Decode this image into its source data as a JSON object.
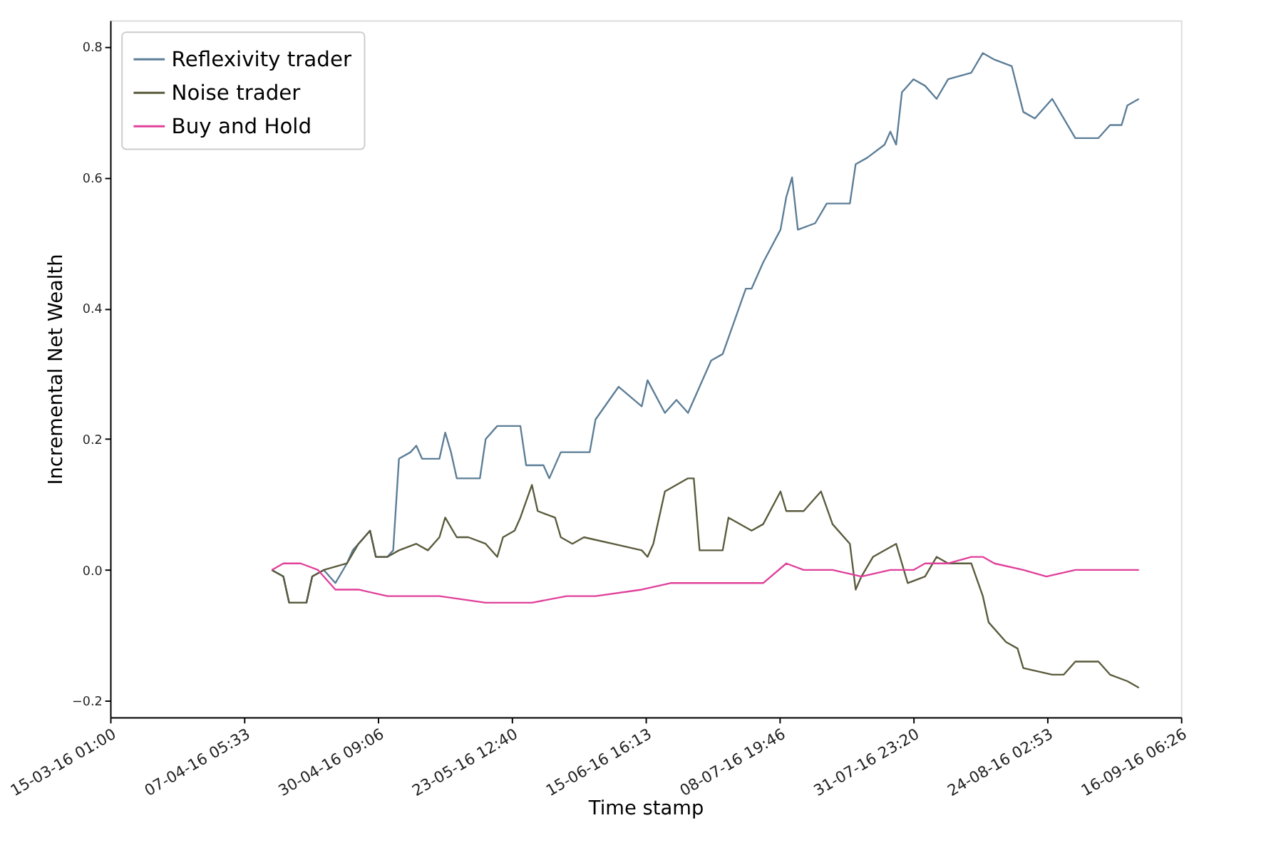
{
  "chart_data": {
    "type": "line",
    "xlabel": "Time stamp",
    "ylabel": "Incremental Net Wealth",
    "xlim": [
      "2016-03-15T01:00",
      "2016-09-16T06:26"
    ],
    "xticks": [
      {
        "value": "2016-03-15T01:00",
        "label": "15-03-16 01:00"
      },
      {
        "value": "2016-04-07T05:33",
        "label": "07-04-16 05:33"
      },
      {
        "value": "2016-04-30T09:06",
        "label": "30-04-16 09:06"
      },
      {
        "value": "2016-05-23T12:40",
        "label": "23-05-16 12:40"
      },
      {
        "value": "2016-06-15T16:13",
        "label": "15-06-16 16:13"
      },
      {
        "value": "2016-07-08T19:46",
        "label": "08-07-16 19:46"
      },
      {
        "value": "2016-07-31T23:20",
        "label": "31-07-16 23:20"
      },
      {
        "value": "2016-08-24T02:53",
        "label": "24-08-16 02:53"
      },
      {
        "value": "2016-09-16T06:26",
        "label": "16-09-16 06:26"
      }
    ],
    "ylim": [
      -0.225,
      0.84
    ],
    "yticks": [
      {
        "value": -0.2,
        "label": "−0.2"
      },
      {
        "value": 0,
        "label": "0.0"
      },
      {
        "value": 0.2,
        "label": "0.2"
      },
      {
        "value": 0.4,
        "label": "0.4"
      },
      {
        "value": 0.6,
        "label": "0.6"
      },
      {
        "value": 0.8,
        "label": "0.8"
      }
    ],
    "grid": false,
    "legend": "top left",
    "line_style": "solid",
    "marker": "none",
    "series": [
      {
        "name": "Reflexivity trader",
        "color": "#5b7d96",
        "x": [
          "2016-04-12",
          "2016-04-14",
          "2016-04-15",
          "2016-04-18",
          "2016-04-19",
          "2016-04-21",
          "2016-04-23",
          "2016-04-25",
          "2016-04-26",
          "2016-04-27",
          "2016-04-29",
          "2016-04-30",
          "2016-05-02",
          "2016-05-03",
          "2016-05-04",
          "2016-05-06",
          "2016-05-07",
          "2016-05-08",
          "2016-05-11",
          "2016-05-12",
          "2016-05-13",
          "2016-05-14",
          "2016-05-18",
          "2016-05-19",
          "2016-05-21",
          "2016-05-25",
          "2016-05-26",
          "2016-05-29",
          "2016-05-30",
          "2016-06-01",
          "2016-06-06",
          "2016-06-07",
          "2016-06-11",
          "2016-06-15",
          "2016-06-16",
          "2016-06-19",
          "2016-06-21",
          "2016-06-23",
          "2016-06-25",
          "2016-06-27",
          "2016-06-29",
          "2016-07-03",
          "2016-07-04",
          "2016-07-06",
          "2016-07-09",
          "2016-07-10",
          "2016-07-11",
          "2016-07-12",
          "2016-07-15",
          "2016-07-17",
          "2016-07-21",
          "2016-07-22",
          "2016-07-24",
          "2016-07-27",
          "2016-07-28",
          "2016-07-29",
          "2016-07-30",
          "2016-08-01",
          "2016-08-03",
          "2016-08-05",
          "2016-08-07",
          "2016-08-11",
          "2016-08-13",
          "2016-08-15",
          "2016-08-18",
          "2016-08-20",
          "2016-08-22",
          "2016-08-25",
          "2016-08-27",
          "2016-08-29",
          "2016-09-02",
          "2016-09-04",
          "2016-09-06",
          "2016-09-07",
          "2016-09-09"
        ],
        "values": [
          0.0,
          -0.01,
          -0.05,
          -0.05,
          -0.01,
          0.0,
          -0.02,
          0.01,
          0.03,
          0.04,
          0.06,
          0.02,
          0.02,
          0.03,
          0.17,
          0.18,
          0.19,
          0.17,
          0.17,
          0.21,
          0.18,
          0.14,
          0.14,
          0.2,
          0.22,
          0.22,
          0.16,
          0.16,
          0.14,
          0.18,
          0.18,
          0.23,
          0.28,
          0.25,
          0.29,
          0.24,
          0.26,
          0.24,
          0.28,
          0.32,
          0.33,
          0.43,
          0.43,
          0.47,
          0.52,
          0.57,
          0.6,
          0.52,
          0.53,
          0.56,
          0.56,
          0.62,
          0.63,
          0.65,
          0.67,
          0.65,
          0.73,
          0.75,
          0.74,
          0.72,
          0.75,
          0.76,
          0.79,
          0.78,
          0.77,
          0.7,
          0.69,
          0.72,
          0.69,
          0.66,
          0.66,
          0.68,
          0.68,
          0.71,
          0.72
        ]
      },
      {
        "name": "Noise trader",
        "color": "#5a5a3c",
        "x": [
          "2016-04-12",
          "2016-04-14",
          "2016-04-15",
          "2016-04-18",
          "2016-04-19",
          "2016-04-21",
          "2016-04-25",
          "2016-04-27",
          "2016-04-29",
          "2016-04-30",
          "2016-05-02",
          "2016-05-04",
          "2016-05-07",
          "2016-05-09",
          "2016-05-11",
          "2016-05-12",
          "2016-05-14",
          "2016-05-16",
          "2016-05-19",
          "2016-05-21",
          "2016-05-22",
          "2016-05-24",
          "2016-05-25",
          "2016-05-27",
          "2016-05-28",
          "2016-05-31",
          "2016-06-01",
          "2016-06-03",
          "2016-06-05",
          "2016-06-10",
          "2016-06-15",
          "2016-06-16",
          "2016-06-17",
          "2016-06-19",
          "2016-06-21",
          "2016-06-23",
          "2016-06-24",
          "2016-06-25",
          "2016-06-29",
          "2016-06-30",
          "2016-07-04",
          "2016-07-06",
          "2016-07-09",
          "2016-07-10",
          "2016-07-13",
          "2016-07-16",
          "2016-07-18",
          "2016-07-21",
          "2016-07-22",
          "2016-07-23",
          "2016-07-25",
          "2016-07-29",
          "2016-07-31",
          "2016-08-03",
          "2016-08-05",
          "2016-08-07",
          "2016-08-11",
          "2016-08-13",
          "2016-08-14",
          "2016-08-17",
          "2016-08-19",
          "2016-08-20",
          "2016-08-25",
          "2016-08-27",
          "2016-08-29",
          "2016-09-02",
          "2016-09-04",
          "2016-09-07",
          "2016-09-09"
        ],
        "values": [
          0.0,
          -0.01,
          -0.05,
          -0.05,
          -0.01,
          0.0,
          0.01,
          0.04,
          0.06,
          0.02,
          0.02,
          0.03,
          0.04,
          0.03,
          0.05,
          0.08,
          0.05,
          0.05,
          0.04,
          0.02,
          0.05,
          0.06,
          0.08,
          0.13,
          0.09,
          0.08,
          0.05,
          0.04,
          0.05,
          0.04,
          0.03,
          0.02,
          0.04,
          0.12,
          0.13,
          0.14,
          0.14,
          0.03,
          0.03,
          0.08,
          0.06,
          0.07,
          0.12,
          0.09,
          0.09,
          0.12,
          0.07,
          0.04,
          -0.03,
          -0.01,
          0.02,
          0.04,
          -0.02,
          -0.01,
          0.02,
          0.01,
          0.01,
          -0.04,
          -0.08,
          -0.11,
          -0.12,
          -0.15,
          -0.16,
          -0.16,
          -0.14,
          -0.14,
          -0.16,
          -0.17,
          -0.18
        ]
      },
      {
        "name": "Buy and Hold",
        "color": "#e0409a",
        "x": [
          "2016-04-12",
          "2016-04-14",
          "2016-04-17",
          "2016-04-20",
          "2016-04-23",
          "2016-04-27",
          "2016-05-02",
          "2016-05-09",
          "2016-05-11",
          "2016-05-19",
          "2016-05-27",
          "2016-06-02",
          "2016-06-07",
          "2016-06-15",
          "2016-06-20",
          "2016-06-25",
          "2016-07-01",
          "2016-07-06",
          "2016-07-10",
          "2016-07-13",
          "2016-07-18",
          "2016-07-23",
          "2016-07-28",
          "2016-08-01",
          "2016-08-03",
          "2016-08-07",
          "2016-08-11",
          "2016-08-13",
          "2016-08-15",
          "2016-08-20",
          "2016-08-24",
          "2016-08-29",
          "2016-09-04",
          "2016-09-09"
        ],
        "values": [
          0.0,
          0.01,
          0.01,
          0.0,
          -0.03,
          -0.03,
          -0.04,
          -0.04,
          -0.04,
          -0.05,
          -0.05,
          -0.04,
          -0.04,
          -0.03,
          -0.02,
          -0.02,
          -0.02,
          -0.02,
          0.01,
          0.0,
          0.0,
          -0.01,
          0.0,
          0.0,
          0.01,
          0.01,
          0.02,
          0.02,
          0.01,
          0.0,
          -0.01,
          0.0,
          0.0,
          0.0
        ]
      }
    ]
  }
}
